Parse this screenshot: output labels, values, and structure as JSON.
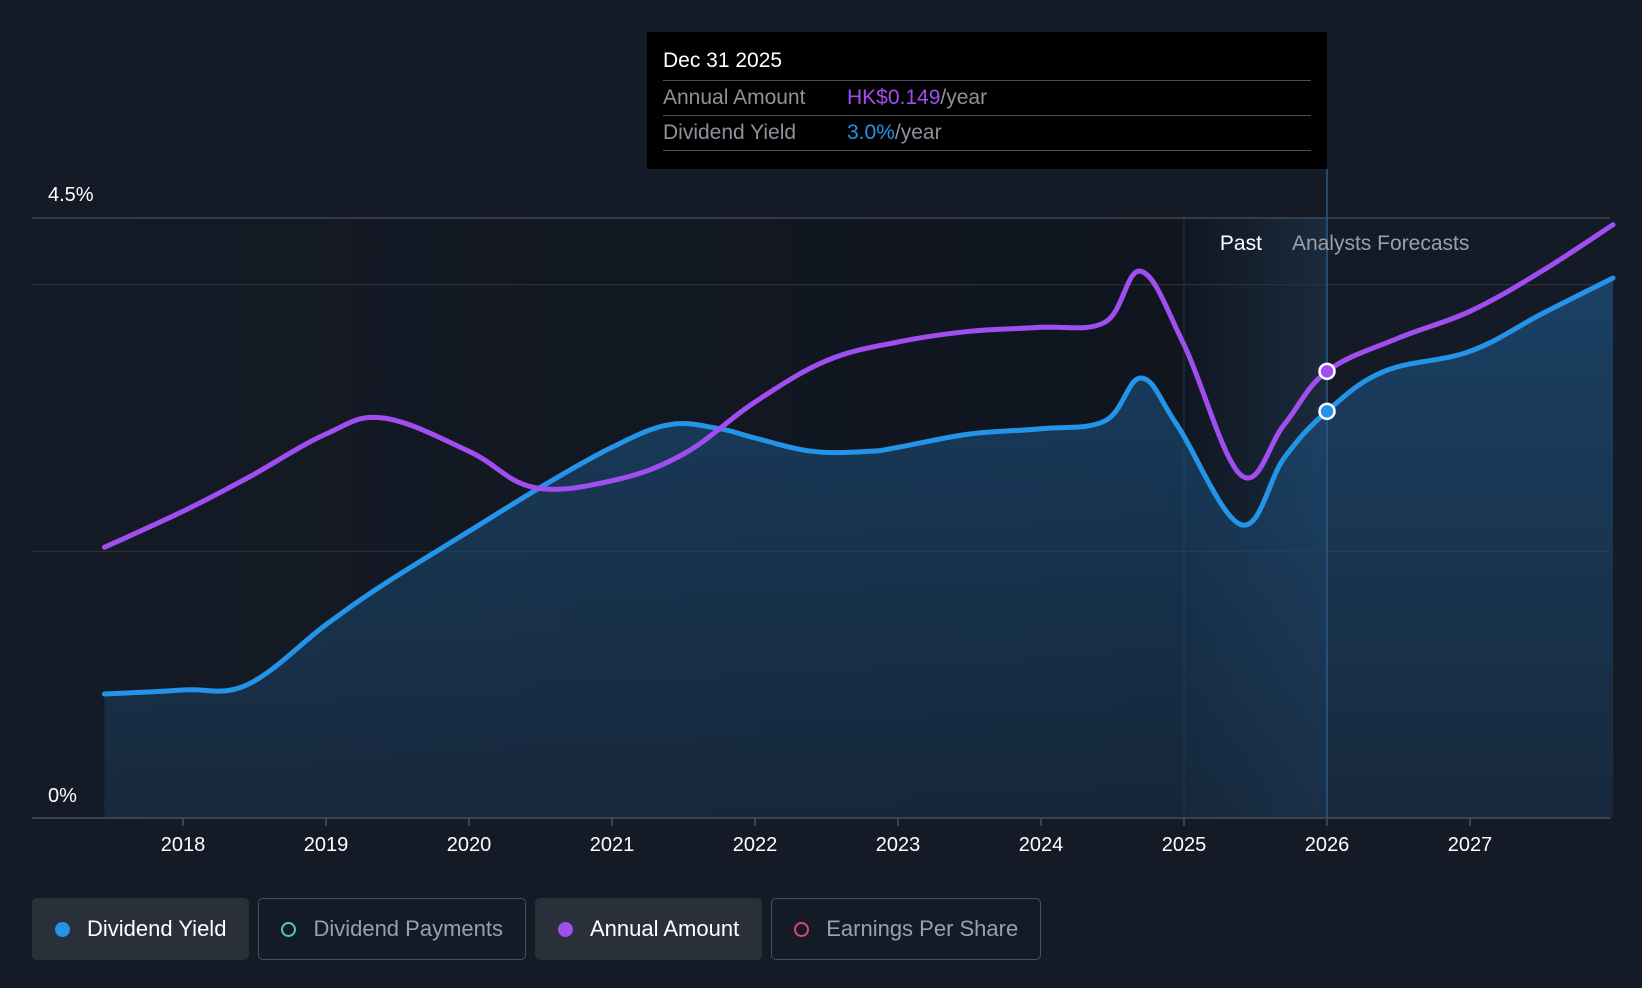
{
  "tooltip": {
    "date": "Dec 31 2025",
    "rows": [
      {
        "label": "Annual Amount",
        "value": "HK$0.149",
        "unit": "/year",
        "color": "#a04ef0"
      },
      {
        "label": "Dividend Yield",
        "value": "3.0%",
        "unit": "/year",
        "color": "#2394e8"
      }
    ]
  },
  "legend": [
    {
      "label": "Dividend Yield",
      "color": "#2394e8",
      "active": true,
      "filled": true
    },
    {
      "label": "Dividend Payments",
      "color": "#4fc9b8",
      "active": false,
      "filled": false
    },
    {
      "label": "Annual Amount",
      "color": "#a04ef0",
      "active": true,
      "filled": true
    },
    {
      "label": "Earnings Per Share",
      "color": "#d8477a",
      "active": false,
      "filled": false
    }
  ],
  "chart_data": {
    "type": "line",
    "y_tick_labels": [
      "4.5%",
      "0%"
    ],
    "ylim": [
      0,
      4.5
    ],
    "xlim": [
      2017.0,
      2028.0
    ],
    "x_ticks": [
      2018,
      2019,
      2020,
      2021,
      2022,
      2023,
      2024,
      2025,
      2026,
      2027
    ],
    "region_labels": {
      "past": "Past",
      "forecast": "Analysts Forecasts"
    },
    "past_region": [
      2025.0,
      2025.65
    ],
    "forecast_start": 2025.65,
    "highlight_x": 2026.0,
    "series": [
      {
        "name": "Dividend Yield",
        "color": "#2394e8",
        "area": true,
        "points": [
          [
            2017.45,
            0.93
          ],
          [
            2018.0,
            0.96
          ],
          [
            2018.45,
            1.0
          ],
          [
            2019.0,
            1.45
          ],
          [
            2019.4,
            1.75
          ],
          [
            2020.0,
            2.15
          ],
          [
            2020.5,
            2.48
          ],
          [
            2021.0,
            2.78
          ],
          [
            2021.4,
            2.95
          ],
          [
            2021.75,
            2.92
          ],
          [
            2022.0,
            2.85
          ],
          [
            2022.4,
            2.75
          ],
          [
            2022.8,
            2.75
          ],
          [
            2023.0,
            2.78
          ],
          [
            2023.5,
            2.88
          ],
          [
            2024.0,
            2.92
          ],
          [
            2024.45,
            2.98
          ],
          [
            2024.7,
            3.3
          ],
          [
            2024.95,
            2.95
          ],
          [
            2025.4,
            2.2
          ],
          [
            2025.7,
            2.7
          ],
          [
            2026.0,
            3.05
          ],
          [
            2026.4,
            3.35
          ],
          [
            2027.0,
            3.5
          ],
          [
            2027.5,
            3.78
          ],
          [
            2028.0,
            4.05
          ]
        ]
      },
      {
        "name": "Annual Amount",
        "color": "#a04ef0",
        "area": false,
        "points": [
          [
            2017.45,
            2.03
          ],
          [
            2018.0,
            2.3
          ],
          [
            2018.45,
            2.55
          ],
          [
            2019.0,
            2.88
          ],
          [
            2019.4,
            3.0
          ],
          [
            2020.0,
            2.75
          ],
          [
            2020.45,
            2.48
          ],
          [
            2021.0,
            2.53
          ],
          [
            2021.5,
            2.73
          ],
          [
            2022.0,
            3.12
          ],
          [
            2022.5,
            3.43
          ],
          [
            2023.0,
            3.57
          ],
          [
            2023.5,
            3.65
          ],
          [
            2024.0,
            3.68
          ],
          [
            2024.45,
            3.72
          ],
          [
            2024.7,
            4.1
          ],
          [
            2025.0,
            3.55
          ],
          [
            2025.4,
            2.57
          ],
          [
            2025.7,
            2.95
          ],
          [
            2026.0,
            3.35
          ],
          [
            2026.5,
            3.6
          ],
          [
            2027.0,
            3.8
          ],
          [
            2027.5,
            4.1
          ],
          [
            2028.0,
            4.45
          ]
        ]
      }
    ],
    "highlight_points": [
      {
        "series": "Annual Amount",
        "x": 2026.0,
        "y": 3.35
      },
      {
        "series": "Dividend Yield",
        "x": 2026.0,
        "y": 3.05
      }
    ]
  }
}
